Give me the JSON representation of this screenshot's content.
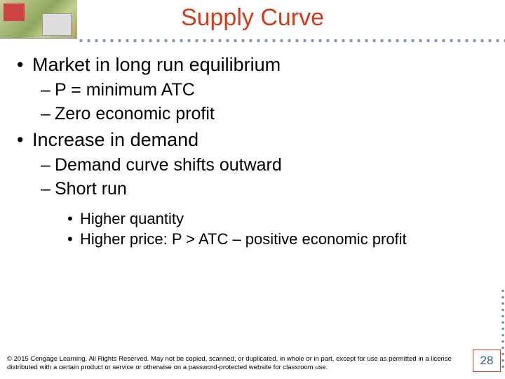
{
  "title": "Supply Curve",
  "bullets": {
    "l1_a": "Market in long run equilibrium",
    "l2_a1": "P = minimum ATC",
    "l2_a2": "Zero economic profit",
    "l1_b": "Increase in demand",
    "l2_b1": "Demand curve shifts outward",
    "l2_b2": "Short run",
    "l3_b2a": "Higher quantity",
    "l3_b2b": "Higher price: P > ATC – positive economic profit"
  },
  "copyright": "© 2015 Cengage Learning. All Rights Reserved. May not be copied, scanned, or duplicated, in whole or in part, except for use as permitted in a license distributed with a certain product or service or otherwise on a password-protected website for classroom use.",
  "page_number": "28",
  "colors": {
    "title_color": "#d13a1a",
    "dot_color": "#7a95b8",
    "page_border": "#d13a1a",
    "page_text": "#3a5c8c"
  }
}
